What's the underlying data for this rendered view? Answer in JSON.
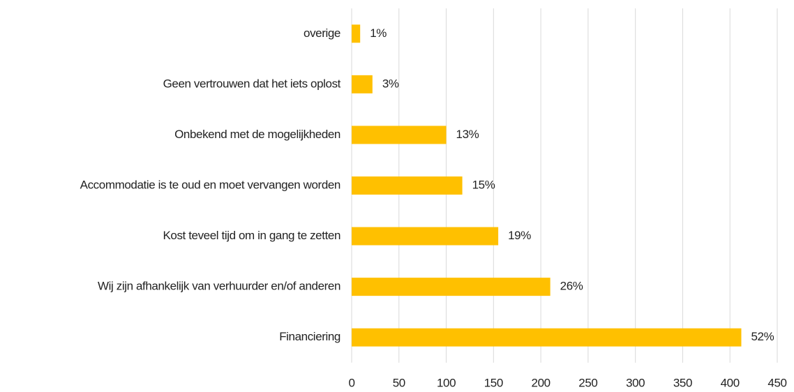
{
  "chart_data": {
    "type": "barh",
    "categories": [
      "overige",
      "Geen vertrouwen dat het iets oplost",
      "Onbekend met de mogelijkheden",
      "Accommodatie is te oud en moet vervangen worden",
      "Kost teveel tijd om in gang te zetten",
      "Wij zijn afhankelijk van verhuurder en/of anderen",
      "Financiering"
    ],
    "values": [
      9,
      22,
      100,
      117,
      155,
      210,
      412
    ],
    "value_labels": [
      "1%",
      "3%",
      "13%",
      "15%",
      "19%",
      "26%",
      "52%"
    ],
    "color": "#ffc000",
    "xlim": [
      0,
      450
    ],
    "xticks": [
      0,
      50,
      100,
      150,
      200,
      250,
      300,
      350,
      400,
      450
    ],
    "grid": true
  }
}
